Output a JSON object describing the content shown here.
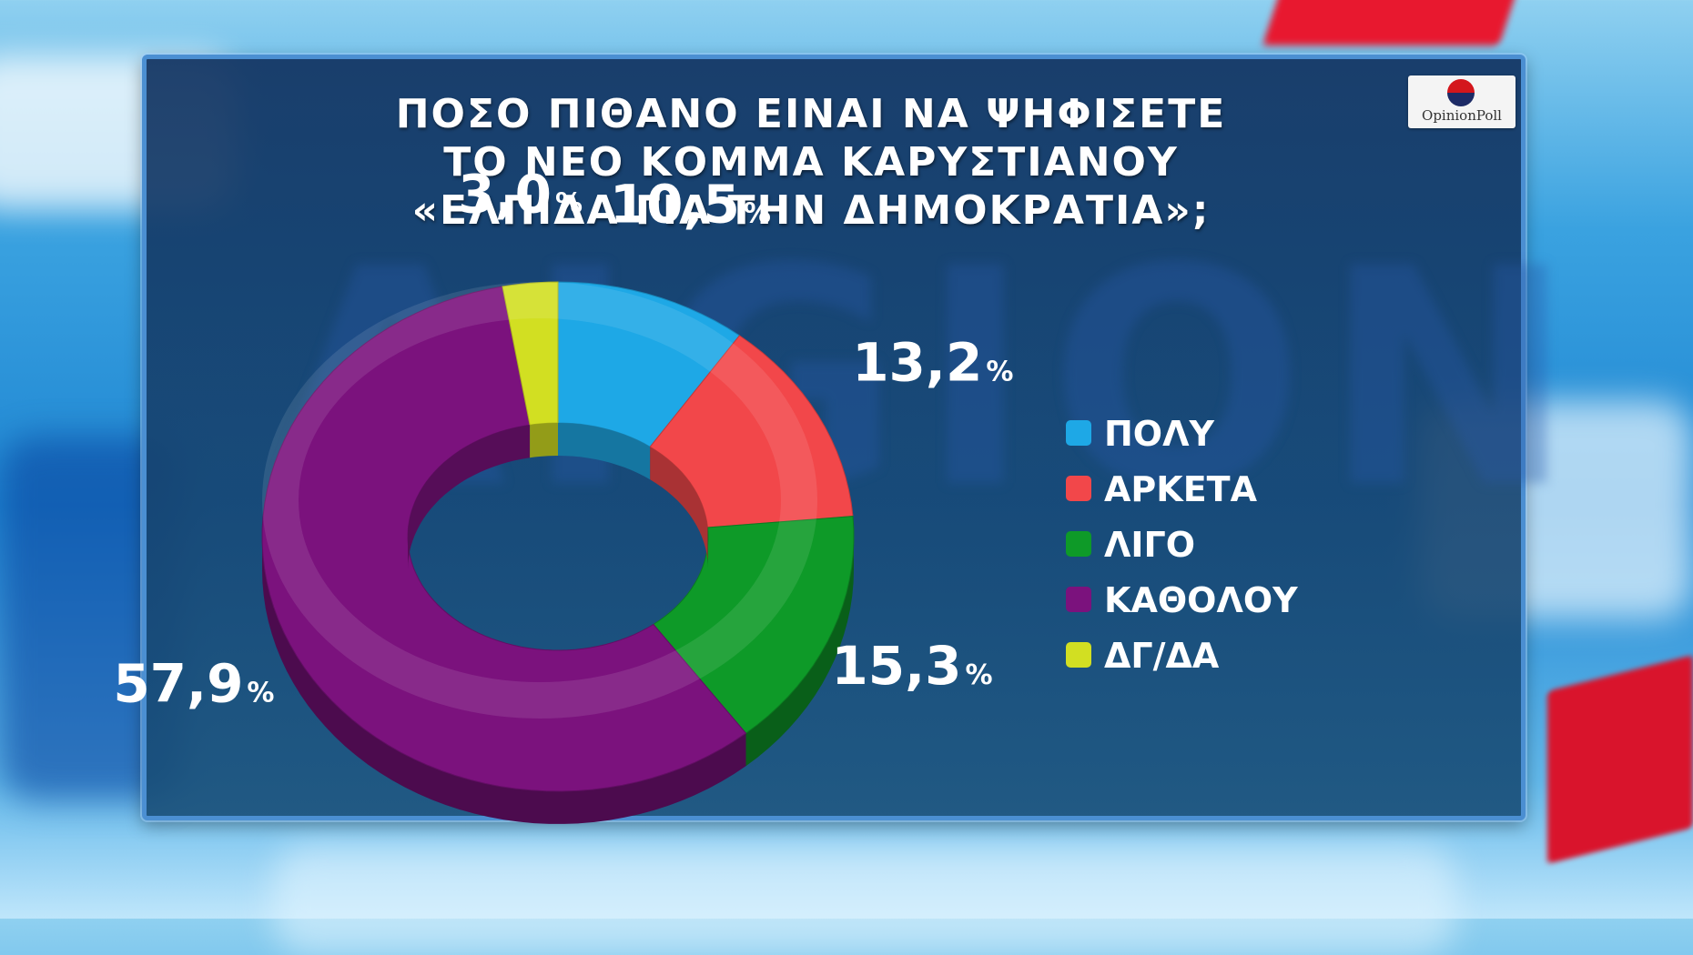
{
  "title_lines": [
    "ΠΟΣΟ ΠΙΘΑΝΟ ΕΙΝΑΙ ΝΑ ΨΗΦΙΣΕΤΕ",
    "ΤΟ ΝΕΟ ΚΟΜΜΑ ΚΑΡΥΣΤΙΑΝΟΥ",
    "«ΕΛΠΙΔΑ ΓΙΑ ΤΗΝ ΔΗΜΟΚΡΑΤΙΑ»;"
  ],
  "logo": {
    "text": "OpinionPoll"
  },
  "watermark": "AIGION",
  "percent_symbol": "%",
  "chart_data": {
    "type": "pie",
    "style": "3d-donut",
    "title": "ΠΟΣΟ ΠΙΘΑΝΟ ΕΙΝΑΙ ΝΑ ΨΗΦΙΣΕΤΕ ΤΟ ΝΕΟ ΚΟΜΜΑ ΚΑΡΥΣΤΙΑΝΟΥ «ΕΛΠΙΔΑ ΓΙΑ ΤΗΝ ΔΗΜΟΚΡΑΤΙΑ»;",
    "legend_position": "right",
    "slices": [
      {
        "label": "ΠΟΛΥ",
        "value": 10.5,
        "display": "10,5",
        "color": "#1ea8e6"
      },
      {
        "label": "ΑΡΚΕΤΑ",
        "value": 13.2,
        "display": "13,2",
        "color": "#f2474a"
      },
      {
        "label": "ΛΙΓΟ",
        "value": 15.3,
        "display": "15,3",
        "color": "#0e9a28"
      },
      {
        "label": "ΚΑΘΟΛΟΥ",
        "value": 57.9,
        "display": "57,9",
        "color": "#7b127d"
      },
      {
        "label": "ΔΓ/ΔΑ",
        "value": 3.0,
        "display": "3,0",
        "color": "#d2df22"
      }
    ]
  }
}
